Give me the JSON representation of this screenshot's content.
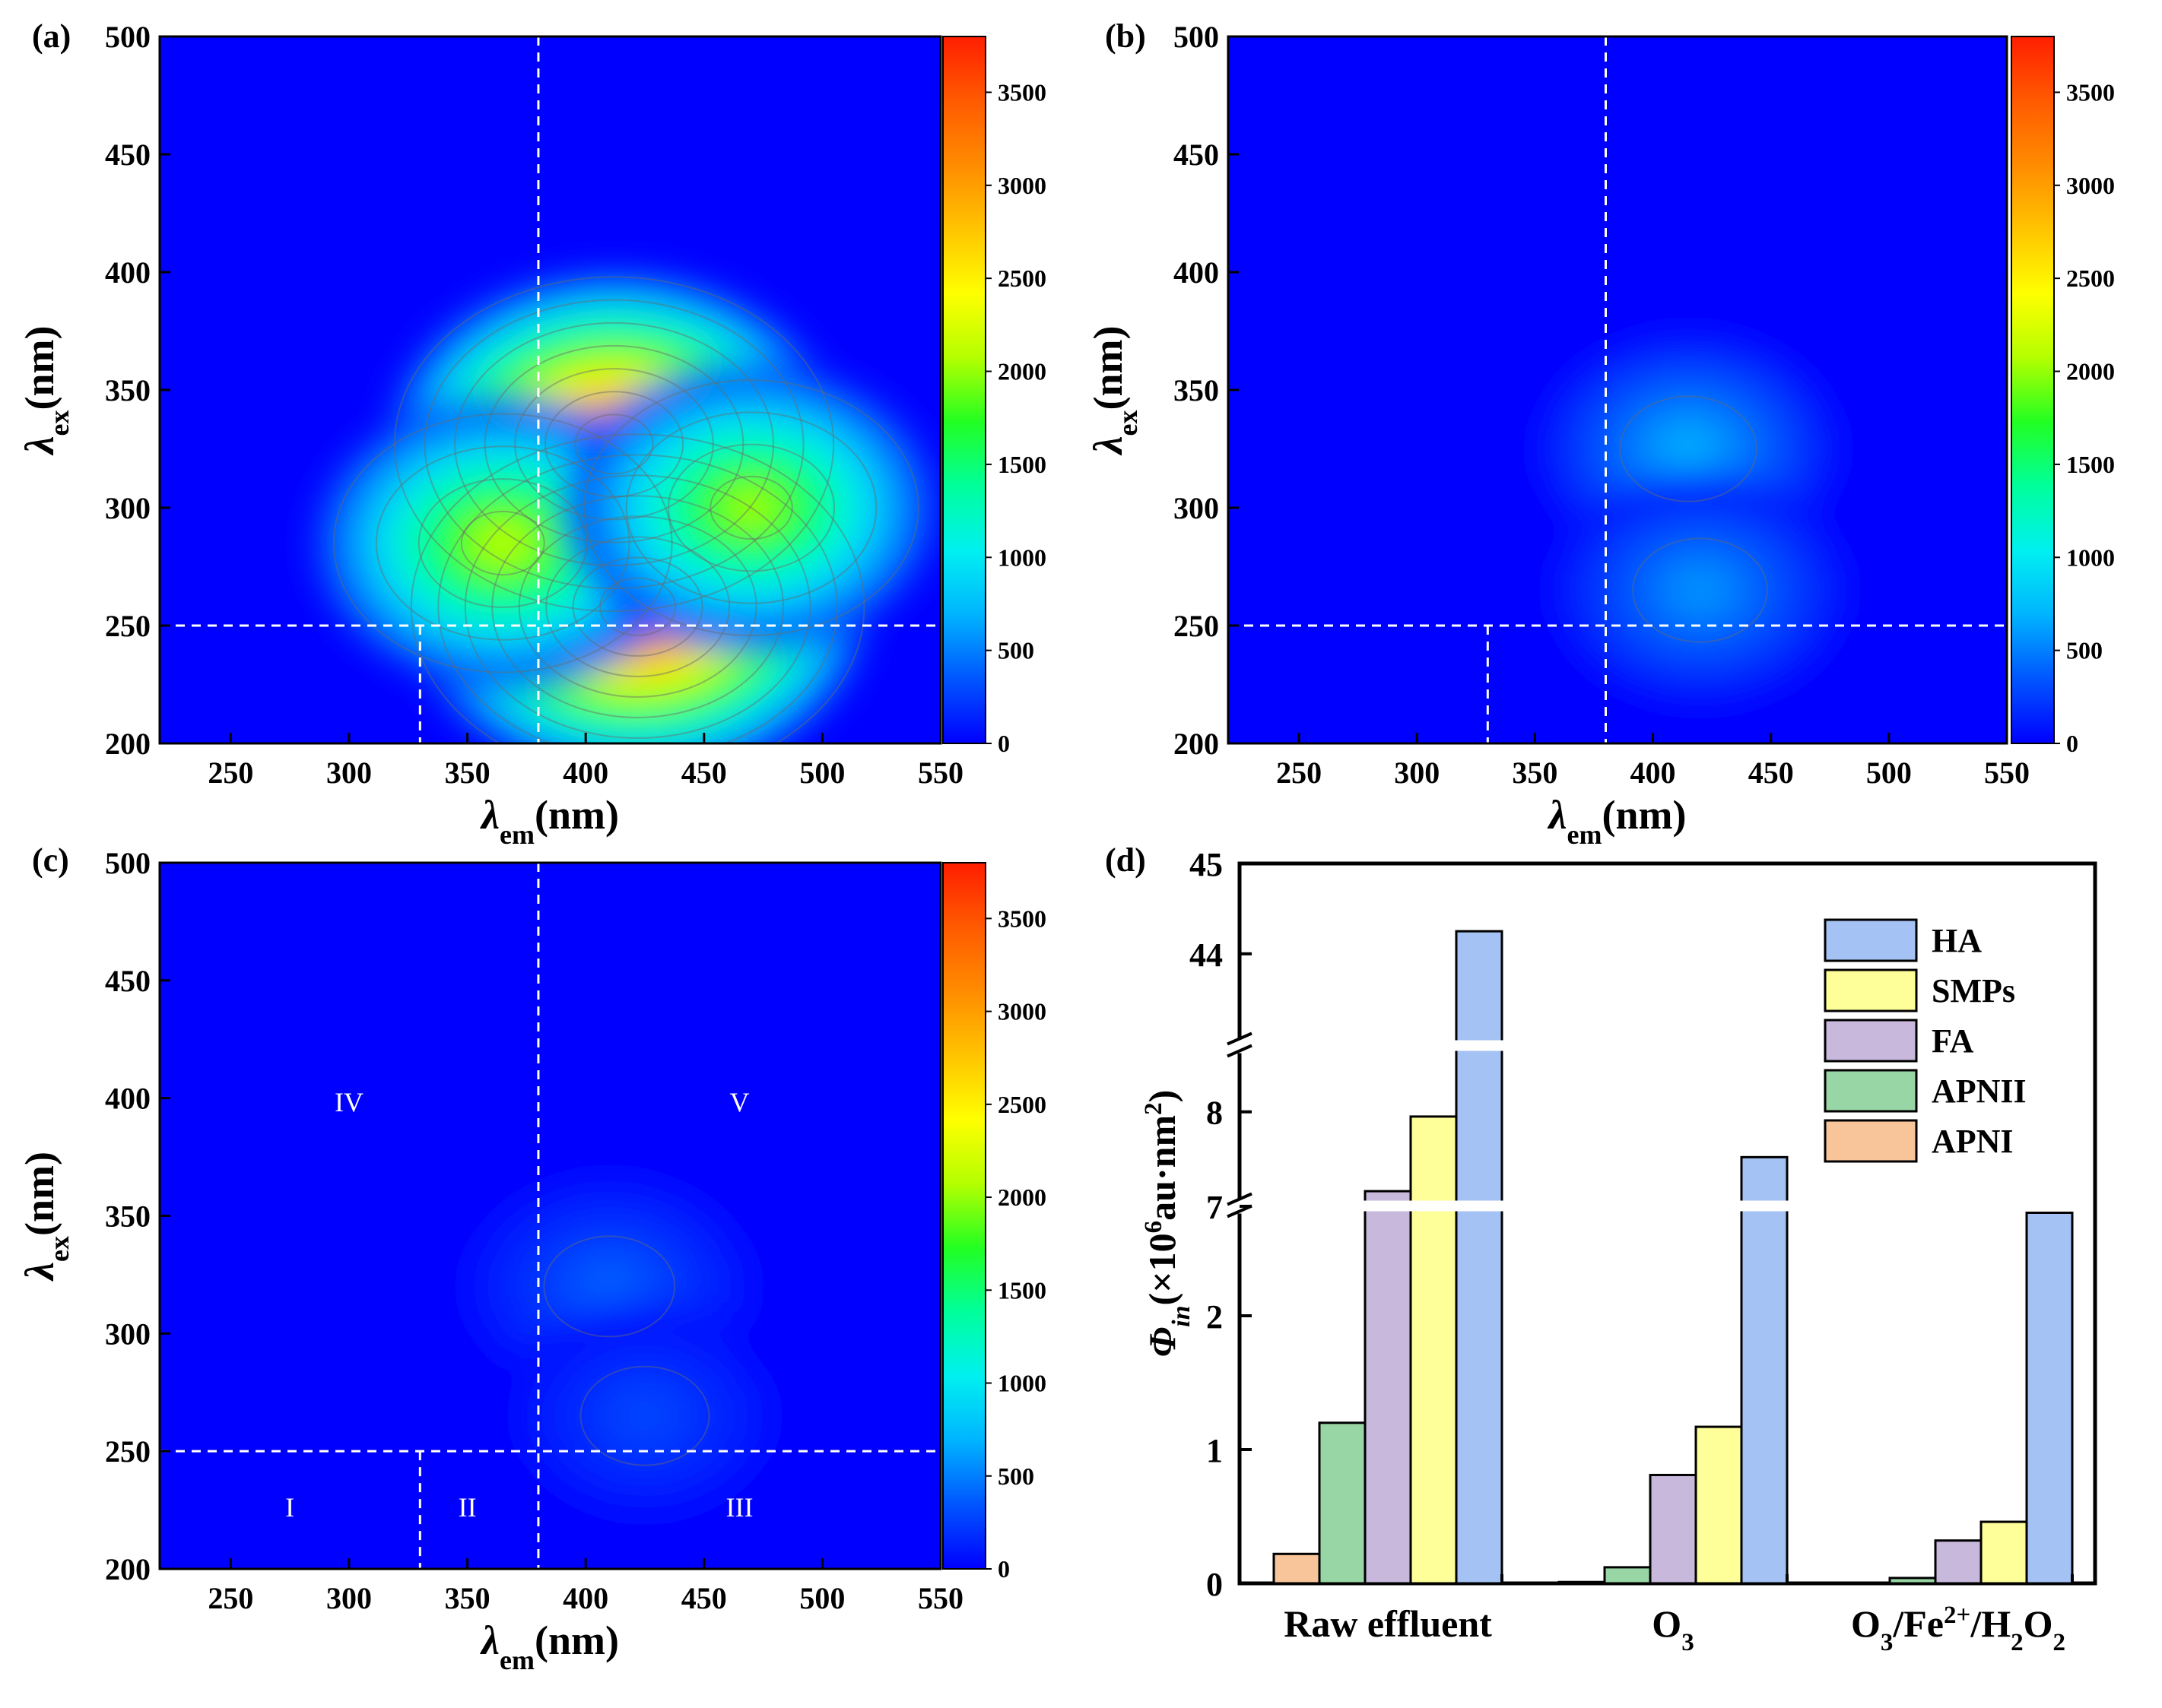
{
  "figure": {
    "panels": [
      {
        "id": "a",
        "label": "(a)"
      },
      {
        "id": "b",
        "label": "(b)"
      },
      {
        "id": "c",
        "label": "(c)"
      },
      {
        "id": "d",
        "label": "(d)"
      }
    ]
  },
  "colors": {
    "colormap": [
      "#0000ff",
      "#0055ff",
      "#00b4ff",
      "#00f0f0",
      "#00ff9c",
      "#22ff22",
      "#b4ff00",
      "#ffff00",
      "#ffc400",
      "#ff8c00",
      "#ff5a00",
      "#ff1e00"
    ],
    "HA": "#a4c2f4",
    "SMPs": "#ffff99",
    "FA": "#c7b8dc",
    "APNII": "#98d6a5",
    "APNI": "#f8c59a"
  },
  "chart_data": [
    {
      "type": "heatmap",
      "panel": "(a)",
      "xlabel": {
        "symbol": "λ",
        "sub": "em",
        "unit": "(nm)"
      },
      "ylabel": {
        "symbol": "λ",
        "sub": "ex",
        "unit": "(nm)"
      },
      "xlim": [
        220,
        550
      ],
      "ylim": [
        200,
        500
      ],
      "xticks": [
        250,
        300,
        350,
        400,
        450,
        500,
        550
      ],
      "yticks": [
        200,
        250,
        300,
        350,
        400,
        450,
        500
      ],
      "colorbar": {
        "range": [
          0,
          3800
        ],
        "ticks": [
          0,
          500,
          1000,
          1500,
          2000,
          2500,
          3000,
          3500
        ]
      },
      "peaks": [
        {
          "em": 412,
          "ex": 327,
          "intensity": 3650
        },
        {
          "em": 422,
          "ex": 258,
          "intensity": 3800
        },
        {
          "em": 365,
          "ex": 285,
          "intensity": 2200
        },
        {
          "em": 470,
          "ex": 300,
          "intensity": 2100
        }
      ],
      "region_dividers": {
        "ex": 250,
        "em": [
          330,
          380
        ]
      }
    },
    {
      "type": "heatmap",
      "panel": "(b)",
      "xlabel": {
        "symbol": "λ",
        "sub": "em",
        "unit": "(nm)"
      },
      "ylabel": {
        "symbol": "λ",
        "sub": "ex",
        "unit": "(nm)"
      },
      "xlim": [
        220,
        550
      ],
      "ylim": [
        200,
        500
      ],
      "xticks": [
        250,
        300,
        350,
        400,
        450,
        500,
        550
      ],
      "yticks": [
        200,
        250,
        300,
        350,
        400,
        450,
        500
      ],
      "colorbar": {
        "range": [
          0,
          3800
        ],
        "ticks": [
          0,
          500,
          1000,
          1500,
          2000,
          2500,
          3000,
          3500
        ]
      },
      "peaks": [
        {
          "em": 415,
          "ex": 325,
          "intensity": 700
        },
        {
          "em": 420,
          "ex": 265,
          "intensity": 600
        }
      ],
      "region_dividers": {
        "ex": 250,
        "em": [
          330,
          380
        ]
      }
    },
    {
      "type": "heatmap",
      "panel": "(c)",
      "xlabel": {
        "symbol": "λ",
        "sub": "em",
        "unit": "(nm)"
      },
      "ylabel": {
        "symbol": "λ",
        "sub": "ex",
        "unit": "(nm)"
      },
      "xlim": [
        220,
        550
      ],
      "ylim": [
        200,
        500
      ],
      "xticks": [
        250,
        300,
        350,
        400,
        450,
        500,
        550
      ],
      "yticks": [
        200,
        250,
        300,
        350,
        400,
        450,
        500
      ],
      "colorbar": {
        "range": [
          0,
          3800
        ],
        "ticks": [
          0,
          500,
          1000,
          1500,
          2000,
          2500,
          3000,
          3500
        ]
      },
      "peaks": [
        {
          "em": 410,
          "ex": 320,
          "intensity": 400
        },
        {
          "em": 425,
          "ex": 265,
          "intensity": 300
        }
      ],
      "region_dividers": {
        "ex": 250,
        "em": [
          330,
          380
        ]
      },
      "regions": [
        {
          "label": "I",
          "em": 275,
          "ex": 225
        },
        {
          "label": "II",
          "em": 350,
          "ex": 225
        },
        {
          "label": "III",
          "em": 465,
          "ex": 225
        },
        {
          "label": "IV",
          "em": 300,
          "ex": 397
        },
        {
          "label": "V",
          "em": 465,
          "ex": 397
        }
      ]
    },
    {
      "type": "bar",
      "panel": "(d)",
      "categories": [
        "Raw effluent",
        "O3",
        "O3/Fe2+/H2O2"
      ],
      "category_labels": [
        {
          "parts": [
            {
              "t": "Raw effluent"
            }
          ]
        },
        {
          "parts": [
            {
              "t": "O"
            },
            {
              "t": "3",
              "s": "sub"
            }
          ]
        },
        {
          "parts": [
            {
              "t": "O"
            },
            {
              "t": "3",
              "s": "sub"
            },
            {
              "t": "/Fe"
            },
            {
              "t": "2+",
              "s": "sup"
            },
            {
              "t": "/H"
            },
            {
              "t": "2",
              "s": "sub"
            },
            {
              "t": "O"
            },
            {
              "t": "2",
              "s": "sub"
            }
          ]
        }
      ],
      "series": [
        {
          "name": "APNI",
          "values": [
            0.22,
            0.01,
            0.0
          ]
        },
        {
          "name": "APNII",
          "values": [
            1.2,
            0.12,
            0.04
          ]
        },
        {
          "name": "FA",
          "values": [
            7.16,
            0.81,
            0.32
          ]
        },
        {
          "name": "SMPs",
          "values": [
            7.95,
            1.17,
            0.46
          ]
        },
        {
          "name": "HA",
          "values": [
            44.25,
            7.52,
            2.77
          ]
        }
      ],
      "ylabel": {
        "symbol": "Φ",
        "sub": "in",
        "unit_parts": [
          {
            "t": "(×10"
          },
          {
            "t": "6",
            "s": "sup"
          },
          {
            "t": "au·nm"
          },
          {
            "t": "2",
            "s": "sup"
          },
          {
            "t": ")"
          }
        ]
      },
      "y_segments": [
        {
          "range": [
            0,
            3
          ],
          "ticks": [
            0,
            1,
            2
          ]
        },
        {
          "range": [
            6.75,
            8.4
          ],
          "ticks": [
            7,
            8
          ]
        },
        {
          "range": [
            43.3,
            45
          ],
          "ticks": [
            44,
            45
          ]
        }
      ],
      "legend": {
        "position": "top-right",
        "order": [
          "HA",
          "SMPs",
          "FA",
          "APNII",
          "APNI"
        ]
      }
    }
  ]
}
